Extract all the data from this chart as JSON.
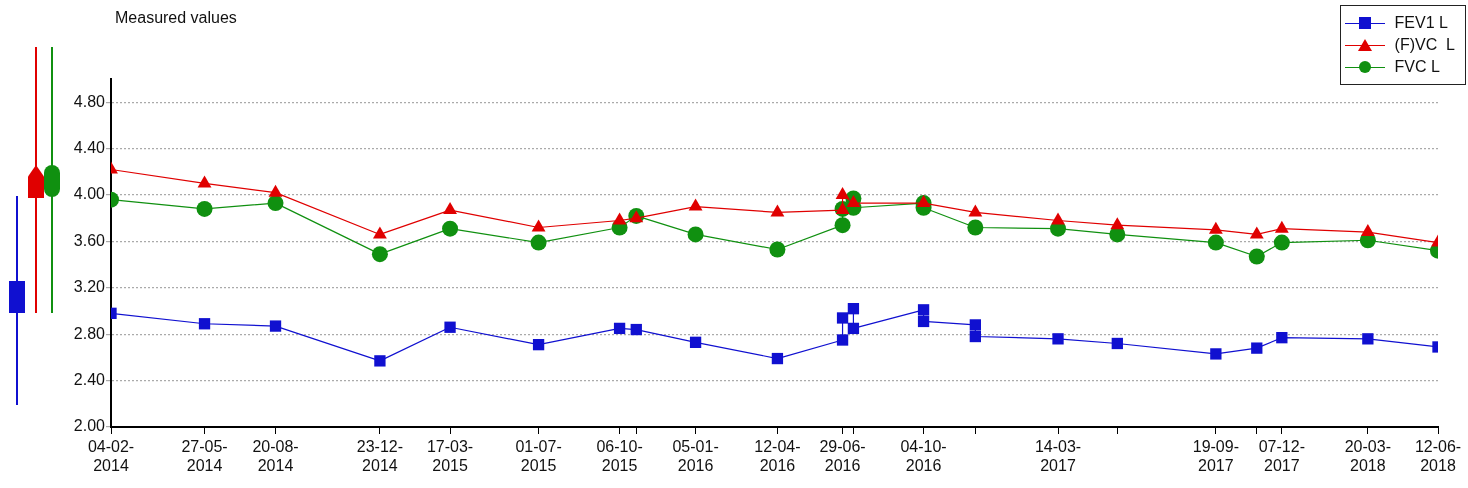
{
  "chart_data": {
    "type": "line",
    "title": "Measured values",
    "legend": "top right",
    "grid": "y",
    "xlim": [
      "2014-02-04",
      "2018-06-12"
    ],
    "ylim": [
      2.0,
      5.0
    ],
    "yticks": [
      {
        "value": 2.0,
        "label": "2.00"
      },
      {
        "value": 2.4,
        "label": "2.40"
      },
      {
        "value": 2.8,
        "label": "2.80"
      },
      {
        "value": 3.2,
        "label": "3.20"
      },
      {
        "value": 3.6,
        "label": "3.60"
      },
      {
        "value": 4.0,
        "label": "4.00"
      },
      {
        "value": 4.4,
        "label": "4.40"
      },
      {
        "value": 4.8,
        "label": "4.80"
      }
    ],
    "xticks": [
      {
        "value": "2014-02-04",
        "label": "04-02-2014"
      },
      {
        "value": "2014-05-27",
        "label": "27-05-2014"
      },
      {
        "value": "2014-08-20",
        "label": "20-08-2014"
      },
      {
        "value": "2014-12-23",
        "label": "23-12-2014"
      },
      {
        "value": "2015-03-17",
        "label": "17-03-2015"
      },
      {
        "value": "2015-07-01",
        "label": "01-07-2015"
      },
      {
        "value": "2015-10-06",
        "label": "06-10-2015"
      },
      {
        "value": "2015-10-26",
        "label": null
      },
      {
        "value": "2016-01-05",
        "label": "05-01-2016"
      },
      {
        "value": "2016-04-12",
        "label": "12-04-2016"
      },
      {
        "value": "2016-06-29",
        "label": "29-06-2016"
      },
      {
        "value": "2016-07-12",
        "label": null
      },
      {
        "value": "2016-10-04",
        "label": "04-10-2016"
      },
      {
        "value": "2016-12-05",
        "label": null
      },
      {
        "value": "2017-03-14",
        "label": "14-03-2017"
      },
      {
        "value": "2017-05-24",
        "label": null
      },
      {
        "value": "2017-09-19",
        "label": "19-09-2017"
      },
      {
        "value": "2017-11-07",
        "label": null
      },
      {
        "value": "2017-12-07",
        "label": "07-12-2017"
      },
      {
        "value": "2018-03-20",
        "label": "20-03-2018"
      },
      {
        "value": "2018-06-12",
        "label": "12-06-2018"
      }
    ],
    "series": [
      {
        "name": "FEV1 L",
        "color": "#1010d0",
        "marker": "square",
        "x": [
          "2014-02-04",
          "2014-05-27",
          "2014-08-20",
          "2014-12-23",
          "2015-03-17",
          "2015-07-01",
          "2015-10-06",
          "2015-10-26",
          "2016-01-05",
          "2016-04-12",
          "2016-06-29",
          "2016-06-29",
          "2016-07-12",
          "2016-07-12",
          "2016-10-04",
          "2016-10-04",
          "2016-12-05",
          "2016-12-05",
          "2017-03-14",
          "2017-05-24",
          "2017-09-19",
          "2017-11-07",
          "2017-12-07",
          "2018-03-20",
          "2018-06-12"
        ],
        "values": [
          2.98,
          2.89,
          2.87,
          2.57,
          2.86,
          2.71,
          2.85,
          2.84,
          2.73,
          2.59,
          2.75,
          2.94,
          3.02,
          2.85,
          3.01,
          2.91,
          2.88,
          2.78,
          2.76,
          2.72,
          2.63,
          2.68,
          2.77,
          2.76,
          2.69
        ]
      },
      {
        "name": "(F)VC  L",
        "color": "#e00000",
        "marker": "triangle",
        "x": [
          "2014-02-04",
          "2014-05-27",
          "2014-08-20",
          "2014-12-23",
          "2015-03-17",
          "2015-07-01",
          "2015-10-06",
          "2015-10-26",
          "2016-01-05",
          "2016-04-12",
          "2016-06-29",
          "2016-06-29",
          "2016-07-12",
          "2016-10-04",
          "2016-12-05",
          "2017-03-14",
          "2017-05-24",
          "2017-09-19",
          "2017-11-07",
          "2017-12-07",
          "2018-03-20",
          "2018-06-12"
        ],
        "values": [
          4.22,
          4.1,
          4.02,
          3.66,
          3.87,
          3.72,
          3.78,
          3.8,
          3.9,
          3.85,
          3.87,
          4.0,
          3.93,
          3.93,
          3.85,
          3.78,
          3.74,
          3.7,
          3.66,
          3.71,
          3.68,
          3.59
        ]
      },
      {
        "name": "FVC L",
        "color": "#109010",
        "marker": "circle",
        "x": [
          "2014-02-04",
          "2014-05-27",
          "2014-08-20",
          "2014-12-23",
          "2015-03-17",
          "2015-07-01",
          "2015-10-06",
          "2015-10-26",
          "2016-01-05",
          "2016-04-12",
          "2016-06-29",
          "2016-06-29",
          "2016-07-12",
          "2016-07-12",
          "2016-10-04",
          "2016-10-04",
          "2016-12-05",
          "2017-03-14",
          "2017-05-24",
          "2017-09-19",
          "2017-11-07",
          "2017-12-07",
          "2018-03-20",
          "2018-06-12"
        ],
        "values": [
          3.96,
          3.88,
          3.93,
          3.49,
          3.71,
          3.59,
          3.72,
          3.82,
          3.66,
          3.53,
          3.74,
          3.88,
          3.97,
          3.89,
          3.93,
          3.89,
          3.72,
          3.71,
          3.66,
          3.59,
          3.47,
          3.59,
          3.61,
          3.52
        ]
      }
    ]
  }
}
